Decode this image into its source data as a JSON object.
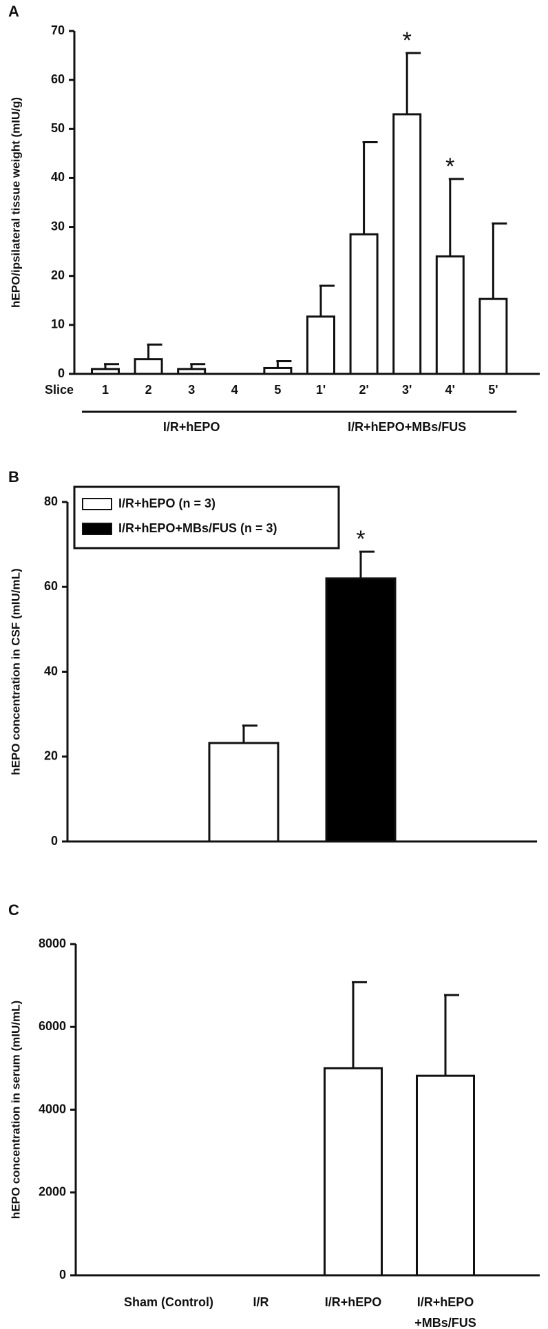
{
  "chart_data": [
    {
      "type": "bar",
      "panel": "A",
      "ylabel": "hEPO/ipsilateral tissue weight (mIU/g)",
      "xlabel": "Slice",
      "categories": [
        "1",
        "2",
        "3",
        "4",
        "5",
        "1'",
        "2'",
        "3'",
        "4'",
        "5'"
      ],
      "series": [
        {
          "color": "#ffffff",
          "values": [
            1,
            3,
            1,
            0,
            1.2,
            11.7,
            28.5,
            53,
            24,
            15.3
          ],
          "errors": [
            1,
            3,
            1,
            0,
            1.4,
            6.3,
            18.8,
            12.5,
            15.8,
            15.4
          ]
        }
      ],
      "ylim": [
        0,
        70
      ],
      "yticks": [
        0,
        10,
        20,
        30,
        40,
        50,
        60,
        70
      ],
      "annotations": [
        {
          "text": "*",
          "category": "3'"
        },
        {
          "text": "*",
          "category": "4'"
        }
      ],
      "groups": [
        {
          "label": "I/R+hEPO",
          "from": "1",
          "to": "5"
        },
        {
          "label": "I/R+hEPO+MBs/FUS",
          "from": "1'",
          "to": "5'"
        }
      ]
    },
    {
      "type": "bar",
      "panel": "B",
      "ylabel": "hEPO concentration in CSF (mIU/mL)",
      "categories": [
        null,
        null,
        null,
        null
      ],
      "series": [
        {
          "name": "I/R+hEPO (n = 3)",
          "color": "#ffffff",
          "values": [
            null,
            23.2,
            null,
            null
          ],
          "errors": [
            null,
            4.1,
            null,
            null
          ]
        },
        {
          "name": "I/R+hEPO+MBs/FUS (n = 3)",
          "color": "#000000",
          "values": [
            null,
            null,
            62,
            null
          ],
          "errors": [
            null,
            null,
            6.3,
            null
          ]
        }
      ],
      "ylim": [
        0,
        80
      ],
      "yticks": [
        0,
        20,
        40,
        60,
        80
      ],
      "legend": "top-left",
      "annotations": [
        {
          "text": "*",
          "series": "I/R+hEPO+MBs/FUS (n = 3)"
        }
      ]
    },
    {
      "type": "bar",
      "panel": "C",
      "ylabel": "hEPO concentration in serum (mIU/mL)",
      "categories": [
        "Sham (Control)",
        "I/R",
        "I/R+hEPO",
        [
          "I/R+hEPO",
          "+MBs/FUS"
        ]
      ],
      "series": [
        {
          "color": "#ffffff",
          "values": [
            0,
            0,
            5000,
            4820
          ],
          "errors": [
            0,
            0,
            2080,
            1950
          ]
        }
      ],
      "ylim": [
        0,
        8000
      ],
      "yticks": [
        0,
        2000,
        4000,
        6000,
        8000
      ]
    }
  ]
}
